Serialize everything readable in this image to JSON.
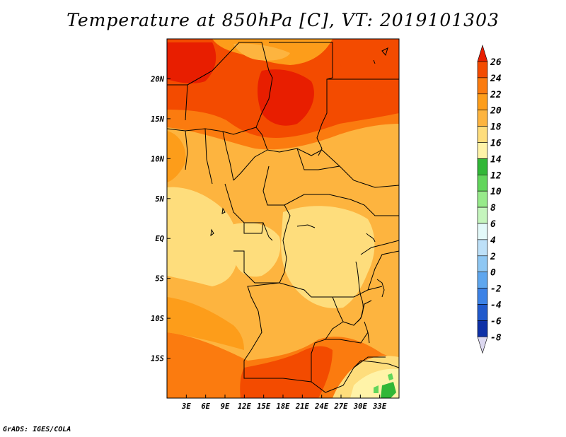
{
  "title": "Temperature at 850hPa [C], VT: 2019101303",
  "credit": "GrADS: IGES/COLA",
  "map": {
    "lon_range": [
      0,
      36
    ],
    "lat_range": [
      -20,
      25
    ],
    "lon_ticks": [
      {
        "value": 3,
        "label": "3E"
      },
      {
        "value": 6,
        "label": "6E"
      },
      {
        "value": 9,
        "label": "9E"
      },
      {
        "value": 12,
        "label": "12E"
      },
      {
        "value": 15,
        "label": "15E"
      },
      {
        "value": 18,
        "label": "18E"
      },
      {
        "value": 21,
        "label": "21E"
      },
      {
        "value": 24,
        "label": "24E"
      },
      {
        "value": 27,
        "label": "27E"
      },
      {
        "value": 30,
        "label": "30E"
      },
      {
        "value": 33,
        "label": "33E"
      }
    ],
    "lat_ticks": [
      {
        "value": 20,
        "label": "20N"
      },
      {
        "value": 15,
        "label": "15N"
      },
      {
        "value": 10,
        "label": "10N"
      },
      {
        "value": 5,
        "label": "5N"
      },
      {
        "value": 0,
        "label": "EQ"
      },
      {
        "value": -5,
        "label": "5S"
      },
      {
        "value": -10,
        "label": "10S"
      },
      {
        "value": -15,
        "label": "15S"
      }
    ]
  },
  "colorbar": {
    "levels": [
      "26",
      "24",
      "22",
      "20",
      "18",
      "16",
      "14",
      "12",
      "10",
      "8",
      "6",
      "4",
      "2",
      "0",
      "-2",
      "-4",
      "-6",
      "-8"
    ],
    "colors": [
      "#e81e00",
      "#f34b00",
      "#fb7b0f",
      "#fd9d1a",
      "#fdb43f",
      "#fedd7c",
      "#fff3a8",
      "#31b737",
      "#61d55b",
      "#97ea8a",
      "#c5f5bd",
      "#e3f9f9",
      "#bde0f8",
      "#8ec7f3",
      "#5ea6ee",
      "#3c82e6",
      "#2059cc",
      "#0e30a6",
      "#0a1480"
    ]
  }
}
